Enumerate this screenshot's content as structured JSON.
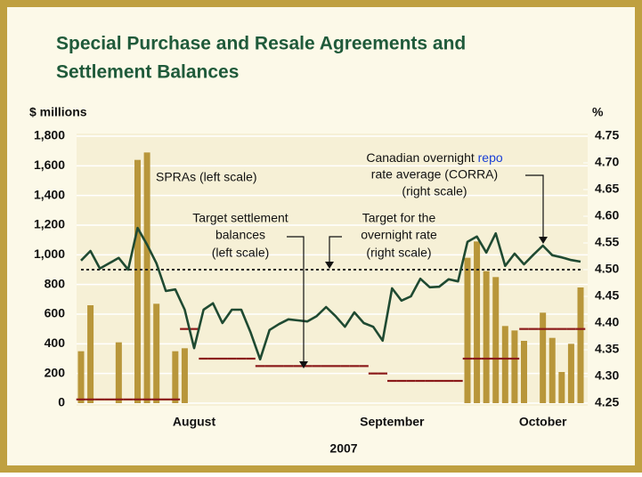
{
  "chart_data": {
    "type": "bar_line",
    "title": [
      "Special Purchase and Resale Agreements and",
      "Settlement Balances"
    ],
    "y_label": "$ millions",
    "y2_label": "%",
    "x_label": "2007",
    "categories": [
      null,
      null,
      null,
      null,
      null,
      null,
      null,
      null,
      null,
      null,
      null,
      null,
      "August",
      null,
      null,
      null,
      null,
      null,
      null,
      null,
      null,
      null,
      null,
      null,
      null,
      null,
      null,
      null,
      null,
      null,
      null,
      null,
      null,
      "September",
      null,
      null,
      null,
      null,
      null,
      null,
      null,
      null,
      null,
      null,
      null,
      null,
      null,
      null,
      null,
      "October",
      null,
      null,
      null,
      null
    ],
    "ylim": [
      0,
      1800
    ],
    "yticks": [
      0,
      200,
      400,
      600,
      800,
      {
        "value": 1000,
        "label": "1,000"
      },
      {
        "value": 1200,
        "label": "1,200"
      },
      {
        "value": 1400,
        "label": "1,400"
      },
      {
        "value": 1600,
        "label": "1,600"
      },
      {
        "value": 1800,
        "label": "1,800"
      }
    ],
    "y2lim": [
      4.25,
      4.75
    ],
    "y2ticks": [
      4.25,
      {
        "value": 4.3,
        "label": "4.30"
      },
      4.35,
      {
        "value": 4.4,
        "label": "4.40"
      },
      4.45,
      {
        "value": 4.5,
        "label": "4.50"
      },
      4.55,
      {
        "value": 4.6,
        "label": "4.60"
      },
      4.65,
      {
        "value": 4.7,
        "label": "4.70"
      },
      4.75
    ],
    "grid": true,
    "series": [
      {
        "kind": "bar",
        "color": "#b8963a",
        "values": [
          350,
          660,
          null,
          null,
          410,
          null,
          1640,
          1690,
          670,
          null,
          350,
          370,
          null,
          null,
          null,
          null,
          null,
          null,
          null,
          null,
          null,
          null,
          null,
          null,
          null,
          null,
          null,
          null,
          null,
          null,
          null,
          null,
          null,
          null,
          null,
          null,
          null,
          null,
          null,
          null,
          null,
          980,
          1090,
          890,
          850,
          520,
          490,
          420,
          null,
          610,
          440,
          210,
          400,
          780
        ]
      },
      {
        "kind": "step",
        "color": "#8b1a1a",
        "values": [
          25,
          25,
          25,
          25,
          25,
          25,
          25,
          25,
          25,
          25,
          25,
          500,
          500,
          300,
          300,
          300,
          300,
          300,
          300,
          250,
          250,
          250,
          250,
          250,
          250,
          250,
          250,
          250,
          250,
          250,
          250,
          200,
          200,
          150,
          150,
          150,
          150,
          150,
          150,
          150,
          150,
          300,
          300,
          300,
          300,
          300,
          300,
          500,
          500,
          500,
          500,
          500,
          500,
          500
        ]
      },
      {
        "kind": "dotted",
        "axis": "y2",
        "color": "#222222",
        "values": [
          4.5,
          4.5,
          4.5,
          4.5,
          4.5,
          4.5,
          4.5,
          4.5,
          4.5,
          4.5,
          4.5,
          4.5,
          4.5,
          4.5,
          4.5,
          4.5,
          4.5,
          4.5,
          4.5,
          4.5,
          4.5,
          4.5,
          4.5,
          4.5,
          4.5,
          4.5,
          4.5,
          4.5,
          4.5,
          4.5,
          4.5,
          4.5,
          4.5,
          4.5,
          4.5,
          4.5,
          4.5,
          4.5,
          4.5,
          4.5,
          4.5,
          4.5,
          4.5,
          4.5,
          4.5,
          4.5,
          4.5,
          4.5,
          4.5,
          4.5,
          4.5,
          4.5,
          4.5,
          4.5
        ]
      },
      {
        "kind": "line",
        "axis": "y2",
        "color": "#1f4a32",
        "values": [
          4.517,
          4.535,
          4.502,
          4.512,
          4.522,
          4.5,
          4.578,
          4.547,
          4.512,
          4.46,
          4.463,
          4.425,
          4.353,
          4.425,
          4.437,
          4.4,
          4.425,
          4.425,
          4.382,
          4.332,
          4.387,
          4.398,
          4.407,
          4.405,
          4.403,
          4.413,
          4.43,
          4.413,
          4.393,
          4.42,
          4.4,
          4.393,
          4.367,
          4.465,
          4.442,
          4.45,
          4.483,
          4.467,
          4.468,
          4.482,
          4.478,
          4.552,
          4.562,
          4.532,
          4.568,
          4.507,
          4.53,
          4.51,
          4.528,
          4.545,
          4.527,
          4.523,
          4.518,
          4.515
        ]
      }
    ],
    "annotations": [
      {
        "lines": [
          "SPRAs (left scale)"
        ]
      },
      {
        "lines": [
          "Target settlement",
          "balances",
          "(left scale)"
        ]
      },
      {
        "lines": [
          "Target for the",
          "overnight rate",
          "(right scale)"
        ]
      },
      {
        "lines": [
          "Canadian overnight ",
          "rate average (CORRA)",
          "(right scale)"
        ],
        "link": "repo"
      }
    ]
  }
}
